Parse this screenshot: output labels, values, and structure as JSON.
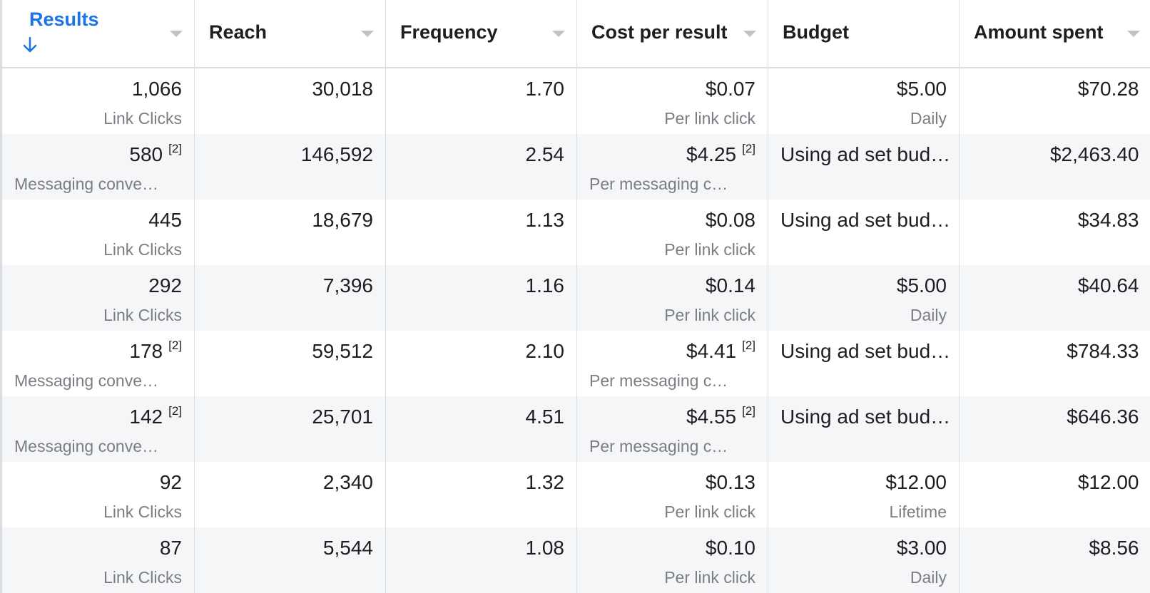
{
  "columns": [
    {
      "label": "Results",
      "sorted": true,
      "has_caret": true
    },
    {
      "label": "Reach",
      "has_caret": true
    },
    {
      "label": "Frequency",
      "has_caret": true
    },
    {
      "label": "Cost per result",
      "has_caret": true
    },
    {
      "label": "Budget",
      "has_caret": false
    },
    {
      "label": "Amount spent",
      "has_caret": true
    }
  ],
  "rows": [
    {
      "results": {
        "value": "1,066",
        "note": "",
        "sub": "Link Clicks"
      },
      "reach": "30,018",
      "frequency": "1.70",
      "cost": {
        "value": "$0.07",
        "note": "",
        "sub": "Per link click"
      },
      "budget": {
        "value": "$5.00",
        "sub": "Daily"
      },
      "amount": "$70.28"
    },
    {
      "results": {
        "value": "580",
        "note": "[2]",
        "sub": "Messaging conve…"
      },
      "reach": "146,592",
      "frequency": "2.54",
      "cost": {
        "value": "$4.25",
        "note": "[2]",
        "sub": "Per messaging c…"
      },
      "budget": {
        "value": "Using ad set bud…",
        "sub": ""
      },
      "amount": "$2,463.40"
    },
    {
      "results": {
        "value": "445",
        "note": "",
        "sub": "Link Clicks"
      },
      "reach": "18,679",
      "frequency": "1.13",
      "cost": {
        "value": "$0.08",
        "note": "",
        "sub": "Per link click"
      },
      "budget": {
        "value": "Using ad set bud…",
        "sub": ""
      },
      "amount": "$34.83"
    },
    {
      "results": {
        "value": "292",
        "note": "",
        "sub": "Link Clicks"
      },
      "reach": "7,396",
      "frequency": "1.16",
      "cost": {
        "value": "$0.14",
        "note": "",
        "sub": "Per link click"
      },
      "budget": {
        "value": "$5.00",
        "sub": "Daily"
      },
      "amount": "$40.64"
    },
    {
      "results": {
        "value": "178",
        "note": "[2]",
        "sub": "Messaging conve…"
      },
      "reach": "59,512",
      "frequency": "2.10",
      "cost": {
        "value": "$4.41",
        "note": "[2]",
        "sub": "Per messaging c…"
      },
      "budget": {
        "value": "Using ad set bud…",
        "sub": ""
      },
      "amount": "$784.33"
    },
    {
      "results": {
        "value": "142",
        "note": "[2]",
        "sub": "Messaging conve…"
      },
      "reach": "25,701",
      "frequency": "4.51",
      "cost": {
        "value": "$4.55",
        "note": "[2]",
        "sub": "Per messaging c…"
      },
      "budget": {
        "value": "Using ad set bud…",
        "sub": ""
      },
      "amount": "$646.36"
    },
    {
      "results": {
        "value": "92",
        "note": "",
        "sub": "Link Clicks"
      },
      "reach": "2,340",
      "frequency": "1.32",
      "cost": {
        "value": "$0.13",
        "note": "",
        "sub": "Per link click"
      },
      "budget": {
        "value": "$12.00",
        "sub": "Lifetime"
      },
      "amount": "$12.00"
    },
    {
      "results": {
        "value": "87",
        "note": "",
        "sub": "Link Clicks"
      },
      "reach": "5,544",
      "frequency": "1.08",
      "cost": {
        "value": "$0.10",
        "note": "",
        "sub": "Per link click"
      },
      "budget": {
        "value": "$3.00",
        "sub": "Daily"
      },
      "amount": "$8.56"
    }
  ],
  "colors": {
    "accent": "#1a73e8",
    "stripe": "#f5f6f7",
    "border": "#dadde1",
    "muted": "#7a7d83"
  },
  "icons": {
    "sort": "arrow-down-icon",
    "menu": "caret-down-icon"
  }
}
